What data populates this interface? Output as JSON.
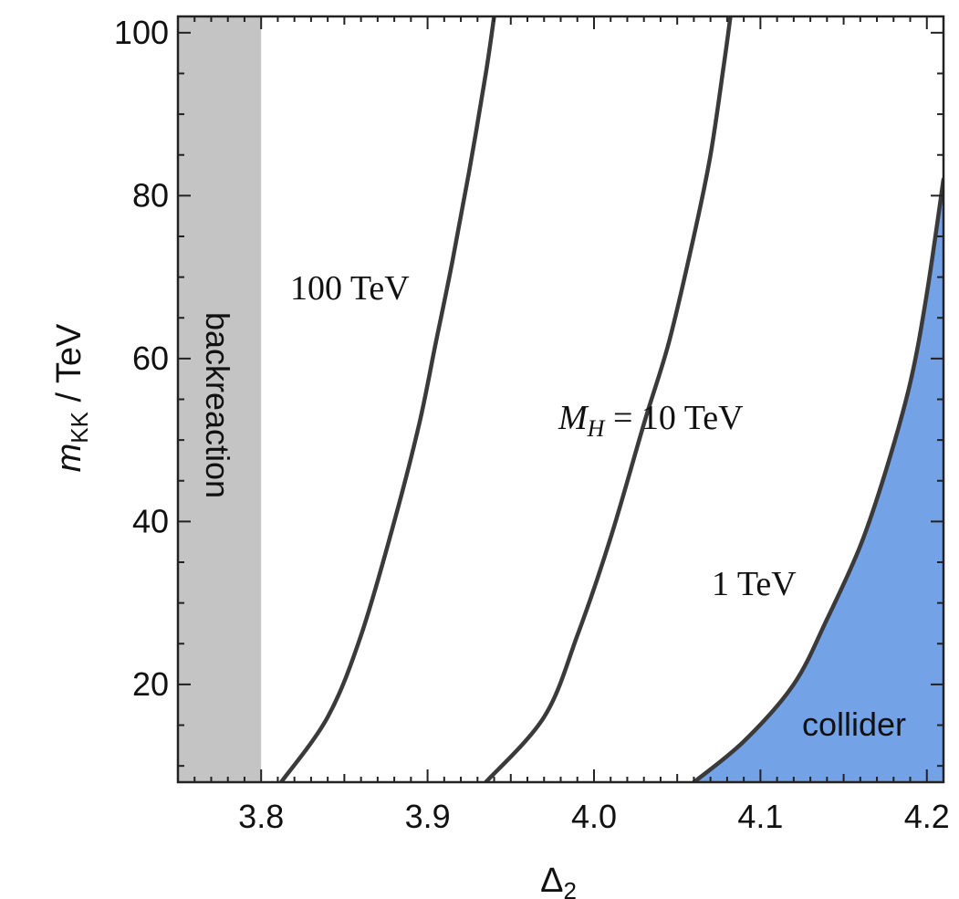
{
  "chart_data": {
    "type": "line",
    "xlabel_main": "Δ",
    "xlabel_sub": "2",
    "ylabel_main": "m",
    "ylabel_sub": "KK",
    "ylabel_rest": " / TeV",
    "xlim": [
      3.75,
      4.21
    ],
    "ylim": [
      8,
      102
    ],
    "x_ticks": [
      3.8,
      3.9,
      4.0,
      4.1,
      4.2
    ],
    "x_tick_labels": [
      "3.8",
      "3.9",
      "4.0",
      "4.1",
      "4.2"
    ],
    "y_ticks": [
      20,
      40,
      60,
      80,
      100
    ],
    "y_tick_labels": [
      "20",
      "40",
      "60",
      "80",
      "100"
    ],
    "grid": false,
    "series": [
      {
        "label_parts": [
          "100",
          "TeV"
        ],
        "x": [
          3.812,
          3.84,
          3.86,
          3.88,
          3.895,
          3.905,
          3.915,
          3.925,
          3.935,
          3.94
        ],
        "y": [
          8,
          16,
          26,
          40,
          52,
          62,
          72,
          83,
          95,
          102
        ]
      },
      {
        "label_parts": [
          "M",
          "H",
          "=",
          "10",
          "TeV"
        ],
        "x": [
          3.935,
          3.97,
          3.99,
          4.01,
          4.03,
          4.045,
          4.06,
          4.07,
          4.078,
          4.082
        ],
        "y": [
          8,
          16,
          26,
          38,
          52,
          62,
          75,
          85,
          96,
          102
        ]
      },
      {
        "label_parts": [
          "1",
          "TeV"
        ],
        "x": [
          4.06,
          4.09,
          4.12,
          4.14,
          4.16,
          4.175,
          4.19,
          4.2,
          4.21
        ],
        "y": [
          8,
          13,
          20,
          28,
          37,
          46,
          57,
          68,
          82
        ]
      }
    ],
    "regions": [
      {
        "label": "backreaction",
        "color": "#c4c4c4",
        "x_range": [
          3.75,
          3.8
        ]
      },
      {
        "label": "collider",
        "color": "#74a2e6"
      }
    ],
    "line_color": "#3a3a3a"
  }
}
